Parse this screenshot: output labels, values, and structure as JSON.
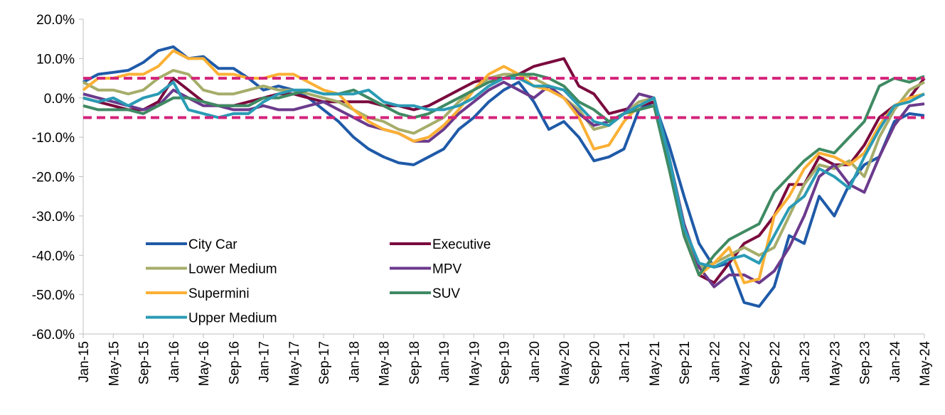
{
  "chart_data": {
    "type": "line",
    "categories": [
      "Jan-15",
      null,
      "May-15",
      null,
      "Sep-15",
      null,
      "Jan-16",
      null,
      "May-16",
      null,
      "Sep-16",
      null,
      "Jan-17",
      null,
      "May-17",
      null,
      "Sep-17",
      null,
      "Jan-18",
      null,
      "May-18",
      null,
      "Sep-18",
      null,
      "Jan-19",
      null,
      "May-19",
      null,
      "Sep-19",
      null,
      "Jan-20",
      null,
      "May-20",
      null,
      "Sep-20",
      null,
      "Jan-21",
      null,
      "May-21",
      null,
      "Sep-21",
      null,
      "Jan-22",
      null,
      "May-22",
      null,
      "Sep-22",
      null,
      "Jan-23",
      null,
      "May-23",
      null,
      "Sep-23",
      null,
      "Jan-24",
      null,
      "May-24"
    ],
    "ylim": [
      -60,
      20
    ],
    "yticks": [
      {
        "value": -60,
        "label": "-60.0%"
      },
      {
        "value": -50,
        "label": "-50.0%"
      },
      {
        "value": -40,
        "label": "-40.0%"
      },
      {
        "value": -30,
        "label": "-30.0%"
      },
      {
        "value": -20,
        "label": "-20.0%"
      },
      {
        "value": -10,
        "label": "-10.0%"
      },
      {
        "value": 0,
        "label": "0.0%"
      },
      {
        "value": 10,
        "label": "10.0%"
      },
      {
        "value": 20,
        "label": "20.0%"
      }
    ],
    "reference_lines": [
      5,
      -5
    ],
    "reference_line_color": "#d4237a",
    "series": [
      {
        "name": "City Car",
        "color": "#1f5aa8",
        "values": [
          4,
          6,
          6.5,
          7,
          9,
          12,
          13,
          10,
          10.5,
          7.5,
          7.5,
          5,
          2,
          3,
          2,
          0,
          -3,
          -6,
          -10,
          -13,
          -15,
          -16.5,
          -17,
          -15,
          -13,
          -8,
          -5,
          -1,
          2,
          4,
          -1,
          -8,
          -6,
          -10,
          -16,
          -15,
          -13,
          -3,
          -1,
          -12,
          -25,
          -37,
          -43,
          -42,
          -52,
          -53,
          -48,
          -35,
          -37,
          -25,
          -30,
          -22,
          -17,
          -15,
          -6,
          -4,
          -4.5
        ]
      },
      {
        "name": "Executive",
        "color": "#7a0a3e",
        "values": [
          0,
          -1,
          -2,
          -3,
          -3,
          -1,
          5,
          2,
          -1,
          -2,
          -2,
          -1,
          0,
          1,
          1,
          0,
          -1,
          -1,
          -1,
          -1,
          -2,
          -2,
          -3,
          -2,
          0,
          2,
          4,
          5,
          5,
          6,
          8,
          9,
          10,
          3,
          1,
          -4,
          -3,
          -2,
          -1,
          -15,
          -35,
          -45,
          -47,
          -42,
          -37,
          -35,
          -30,
          -22,
          -22,
          -15,
          -17,
          -17,
          -12,
          -5,
          -2,
          0,
          5
        ]
      },
      {
        "name": "Lower Medium",
        "color": "#a6ad6a",
        "values": [
          4,
          2,
          2,
          1,
          2,
          5,
          7,
          6,
          2,
          1,
          1,
          2,
          3,
          2,
          2,
          1,
          0,
          -1,
          -3,
          -5,
          -6,
          -8,
          -9,
          -7,
          -5,
          -1,
          2,
          5,
          6,
          6,
          5,
          3,
          0,
          -3,
          -8,
          -7,
          -4,
          -1,
          0,
          -15,
          -33,
          -43,
          -42,
          -40,
          -38,
          -40,
          -38,
          -30,
          -22,
          -17,
          -18,
          -16,
          -20,
          -10,
          -3,
          2,
          4
        ]
      },
      {
        "name": "MPV",
        "color": "#6b3a8c",
        "values": [
          1,
          0,
          -1,
          -2,
          -3,
          -2,
          2,
          0,
          -2,
          -2,
          -3,
          -3,
          -2,
          -3,
          -3,
          -2,
          -1,
          -3,
          -5,
          -7,
          -8,
          -9,
          -11,
          -11,
          -8,
          -4,
          -1,
          2,
          4,
          2,
          0,
          3,
          0,
          -4,
          -7,
          -6,
          -4,
          1,
          0,
          -15,
          -32,
          -43,
          -48,
          -45,
          -45,
          -47,
          -44,
          -38,
          -30,
          -20,
          -17,
          -22,
          -24,
          -15,
          -7,
          -2,
          -1.5
        ]
      },
      {
        "name": "Supermini",
        "color": "#fbb034",
        "values": [
          2,
          5,
          5,
          6,
          6,
          8,
          12,
          10,
          10,
          6,
          6,
          5,
          5,
          6,
          6,
          4,
          2,
          1,
          -3,
          -6,
          -8,
          -9,
          -11,
          -10,
          -7,
          -3,
          2,
          6,
          8,
          6,
          3,
          2,
          0,
          -5,
          -13,
          -12,
          -6,
          -2,
          0,
          -17,
          -35,
          -45,
          -42,
          -38,
          -47,
          -46,
          -30,
          -25,
          -18,
          -14,
          -15,
          -17,
          -14,
          -7,
          -2,
          0,
          1
        ]
      },
      {
        "name": "SUV",
        "color": "#3f8a63",
        "values": [
          -2,
          -3,
          -3,
          -3,
          -4,
          -2,
          0,
          0,
          -1,
          -2,
          -2,
          -2,
          0,
          0,
          1,
          2,
          1,
          1,
          2,
          0,
          -2,
          -4,
          -5,
          -4,
          -2,
          0,
          2,
          4,
          5,
          6,
          6,
          5,
          3,
          -1,
          -3,
          -6,
          -4,
          -3,
          -2,
          -18,
          -35,
          -45,
          -40,
          -36,
          -34,
          -32,
          -24,
          -20,
          -16,
          -13,
          -14,
          -10,
          -6,
          3,
          5,
          4,
          5.5
        ]
      },
      {
        "name": "Upper Medium",
        "color": "#2a9bb5",
        "values": [
          0,
          -1,
          0,
          -2,
          0,
          1,
          4,
          -3,
          -4,
          -5,
          -4,
          -4,
          -1,
          1,
          2,
          2,
          1,
          1,
          1,
          2,
          -1,
          -2,
          -2,
          -3,
          -3,
          -2,
          0,
          3,
          5,
          5,
          3,
          3,
          2,
          -2,
          -6,
          -7,
          -4,
          -2,
          0,
          -15,
          -33,
          -42,
          -43,
          -41,
          -40,
          -42,
          -35,
          -28,
          -25,
          -18,
          -20,
          -23,
          -15,
          -8,
          -2,
          -1,
          1
        ]
      }
    ]
  }
}
